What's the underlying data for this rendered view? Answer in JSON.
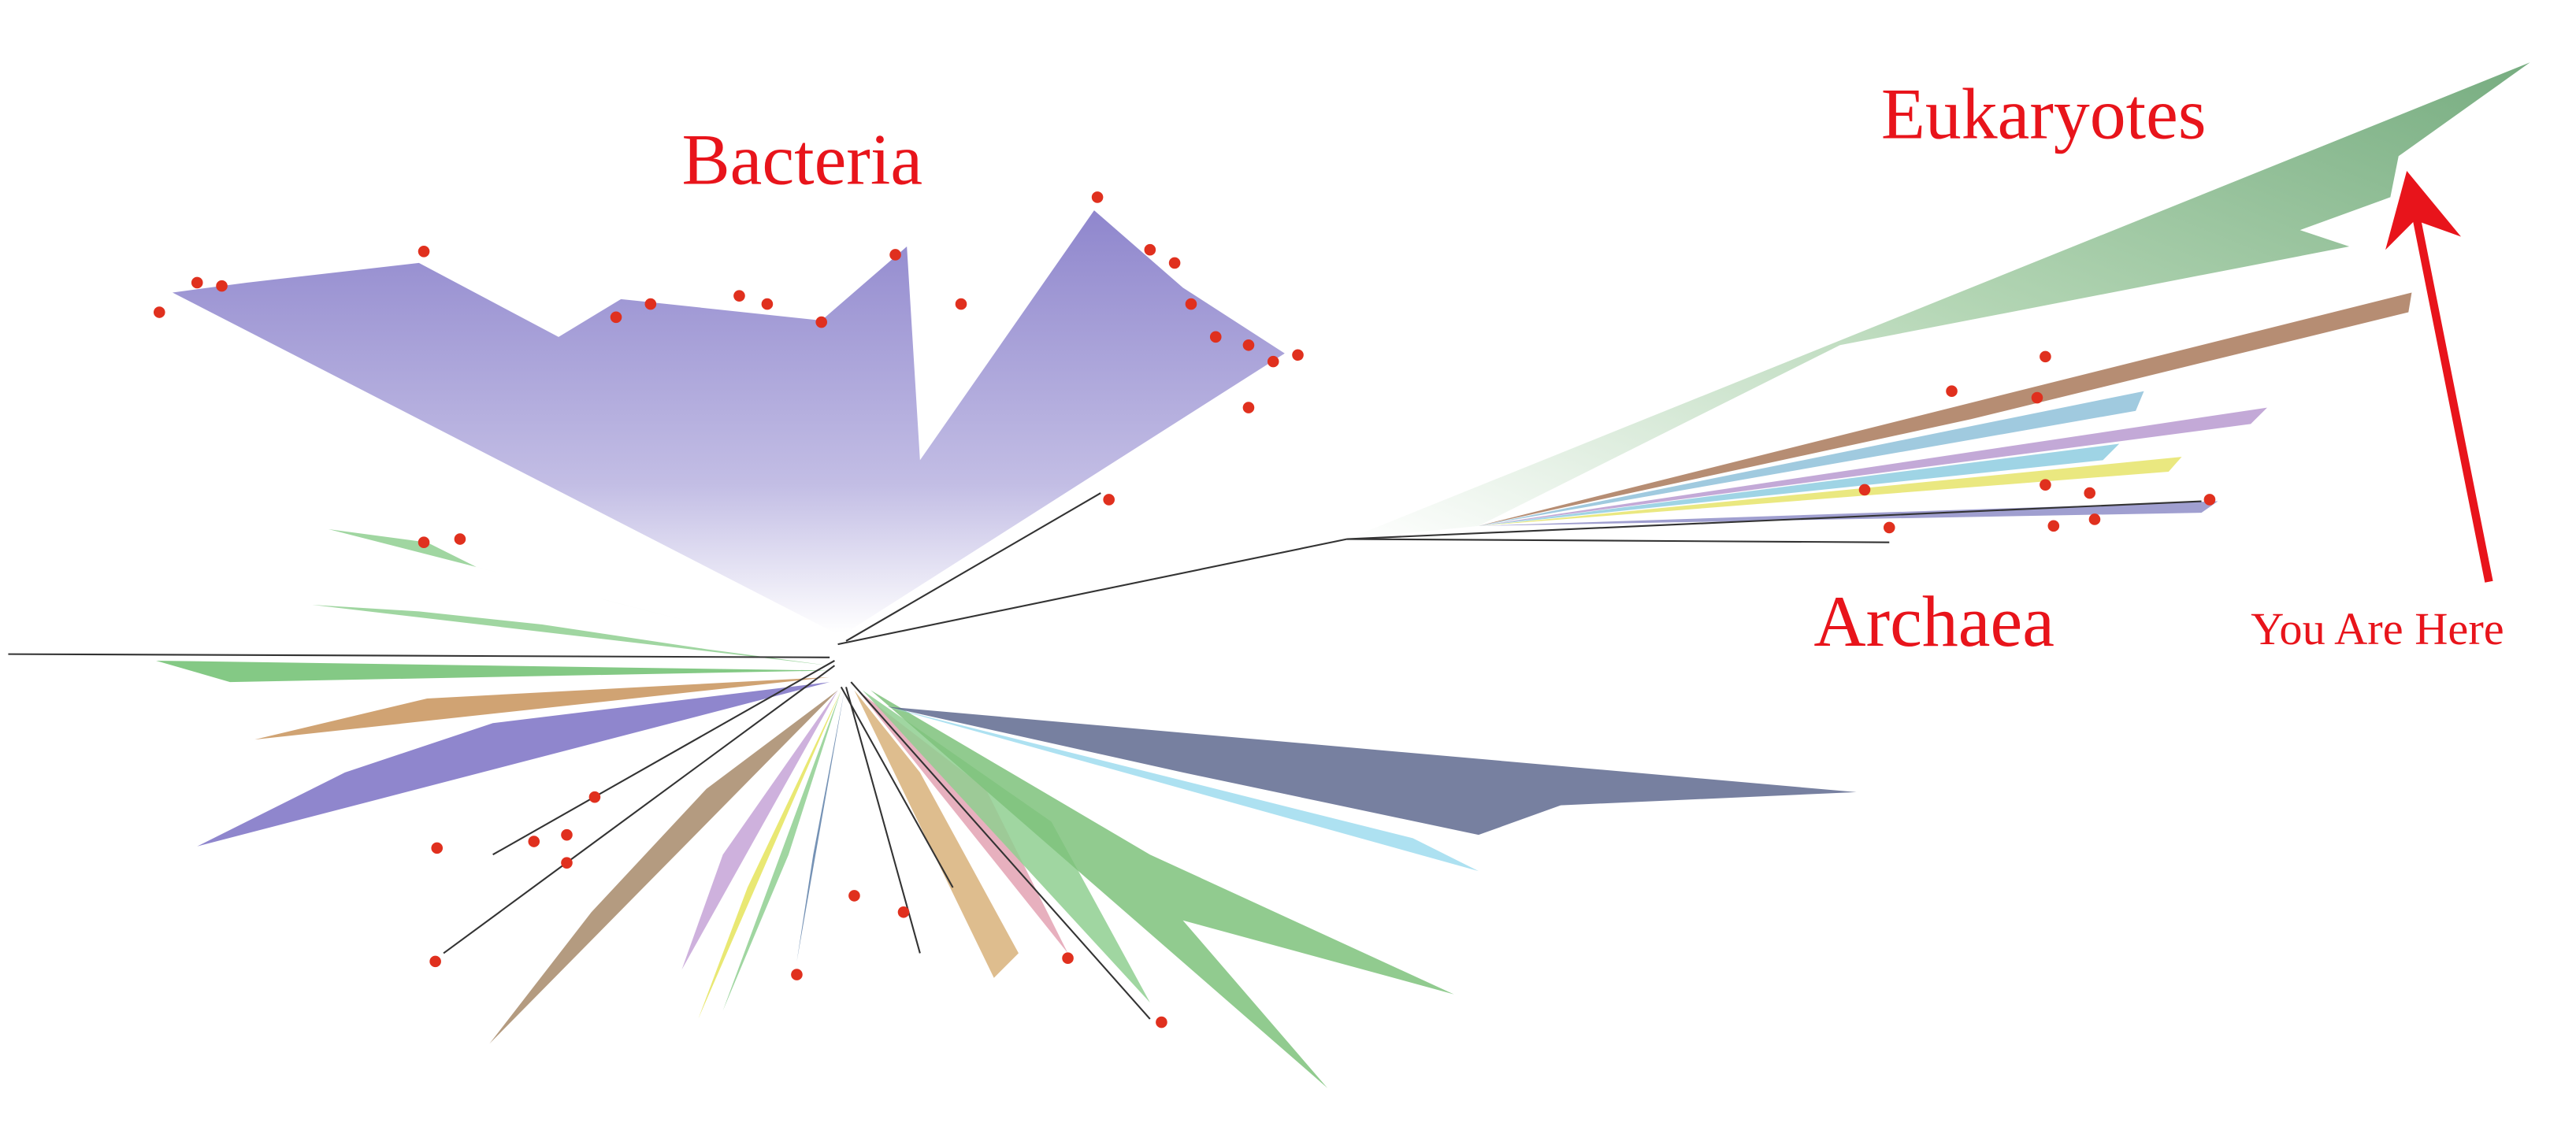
{
  "groups": [
    {
      "label": "Bacteria"
    },
    {
      "label": "Eukaryotes"
    },
    {
      "label": "Archaea"
    }
  ],
  "annotation": {
    "label": "You Are Here"
  }
}
